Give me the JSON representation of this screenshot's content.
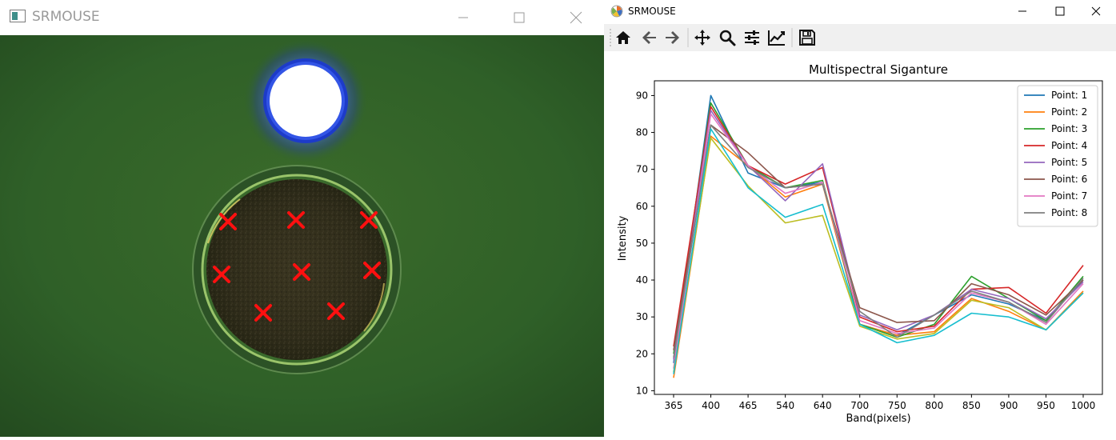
{
  "left_window": {
    "title": "SRMOUSE",
    "markers": 8
  },
  "right_window": {
    "title": "SRMOUSE",
    "toolbar": [
      {
        "name": "home-icon"
      },
      {
        "name": "back-arrow-icon"
      },
      {
        "name": "forward-arrow-icon"
      },
      {
        "name": "pan-icon"
      },
      {
        "name": "zoom-icon"
      },
      {
        "name": "configure-subplots-icon"
      },
      {
        "name": "edit-axes-icon"
      },
      {
        "name": "save-icon"
      }
    ]
  },
  "chart_data": {
    "type": "line",
    "title": "Multispectral Siganture",
    "xlabel": "Band(pixels)",
    "ylabel": "Intensity",
    "categories": [
      "365",
      "400",
      "465",
      "540",
      "640",
      "700",
      "750",
      "800",
      "850",
      "900",
      "950",
      "1000"
    ],
    "yticks": [
      10,
      20,
      30,
      40,
      50,
      60,
      70,
      80,
      90
    ],
    "ylim": [
      9,
      94
    ],
    "legend_position": "top-right",
    "grid": false,
    "series": [
      {
        "name": "Point: 1",
        "color": "#1f77b4",
        "values": [
          17.5,
          90,
          69,
          65,
          66.5,
          28,
          25,
          30.5,
          36,
          33.5,
          29,
          40
        ]
      },
      {
        "name": "Point: 2",
        "color": "#ff7f0e",
        "values": [
          13.5,
          79,
          71,
          62.5,
          66,
          28,
          25,
          26,
          35,
          31.5,
          26.5,
          37
        ]
      },
      {
        "name": "Point: 3",
        "color": "#2ca02c",
        "values": [
          20,
          88,
          71,
          65,
          67,
          28,
          24.5,
          28,
          41,
          35,
          29,
          41
        ]
      },
      {
        "name": "Point: 4",
        "color": "#d62728",
        "values": [
          22,
          87,
          71,
          66,
          70.5,
          30,
          26,
          27.5,
          37.5,
          38,
          31,
          44
        ]
      },
      {
        "name": "Point: 5",
        "color": "#9467bd",
        "values": [
          18.5,
          86,
          71,
          61.5,
          71.5,
          30.5,
          26.5,
          30.5,
          37.5,
          35,
          29.5,
          39.5
        ]
      },
      {
        "name": "Point: 6",
        "color": "#8c564b",
        "values": [
          21,
          82,
          74.5,
          65,
          66,
          32.5,
          28.5,
          29,
          39,
          36,
          30.5,
          40
        ]
      },
      {
        "name": "Point: 7",
        "color": "#e377c2",
        "values": [
          16,
          85,
          71,
          63.5,
          66.5,
          29,
          25.5,
          27,
          36.5,
          34,
          28,
          39
        ]
      },
      {
        "name": "Point: 8",
        "color": "#7f7f7f",
        "values": [
          19,
          82,
          70.5,
          65,
          66,
          31.5,
          24.5,
          30.5,
          37,
          34,
          28.5,
          40.5
        ]
      },
      {
        "name": "",
        "color": "#bcbd22",
        "values": [
          15,
          78.5,
          65.5,
          55.5,
          57.5,
          27.5,
          24,
          25.5,
          34.5,
          32.5,
          26.5,
          36.5
        ]
      },
      {
        "name": "",
        "color": "#17becf",
        "values": [
          14.5,
          81,
          65,
          57,
          60.5,
          28,
          23,
          25,
          31,
          30,
          26.5,
          36.5
        ]
      }
    ]
  }
}
